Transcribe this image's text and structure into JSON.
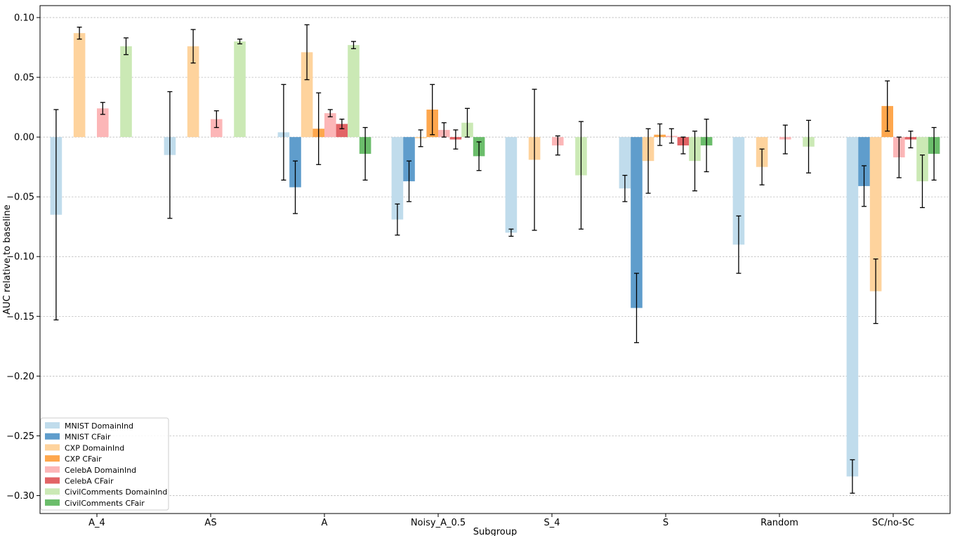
{
  "chart_data": {
    "type": "bar",
    "title": "",
    "xlabel": "Subgroup",
    "ylabel": "AUC relative to baseline",
    "ylim": [
      -0.315,
      0.11
    ],
    "yticks": [
      0.1,
      0.05,
      0.0,
      -0.05,
      -0.1,
      -0.15,
      -0.2,
      -0.25,
      -0.3
    ],
    "ytick_labels": [
      "0.10",
      "0.05",
      "0.00",
      "−0.05",
      "−0.10",
      "−0.15",
      "−0.20",
      "−0.25",
      "−0.30"
    ],
    "grid": "y",
    "legend_position": "lower-left",
    "categories": [
      "A_4",
      "AS",
      "A",
      "Noisy_A_0.5",
      "S_4",
      "S",
      "Random",
      "SC/no-SC"
    ],
    "series": [
      {
        "name": "MNIST DomainInd",
        "color": "#c0dcec",
        "values": [
          -0.065,
          -0.015,
          0.004,
          -0.069,
          -0.08,
          -0.043,
          -0.09,
          -0.284
        ],
        "errors": [
          0.088,
          0.053,
          0.04,
          0.013,
          0.003,
          0.011,
          0.024,
          0.014
        ]
      },
      {
        "name": "MNIST CFair",
        "color": "#5f9dcc",
        "values": [
          null,
          null,
          -0.042,
          -0.037,
          null,
          -0.143,
          null,
          -0.041
        ],
        "errors": [
          null,
          null,
          0.022,
          0.017,
          null,
          0.029,
          null,
          0.017
        ]
      },
      {
        "name": "CXP DomainInd",
        "color": "#fed39d",
        "values": [
          0.087,
          0.076,
          0.071,
          -0.001,
          -0.019,
          -0.02,
          -0.025,
          -0.129
        ],
        "errors": [
          0.005,
          0.014,
          0.023,
          0.007,
          0.059,
          0.027,
          0.015,
          0.027
        ]
      },
      {
        "name": "CXP CFair",
        "color": "#fea74d",
        "values": [
          null,
          null,
          0.007,
          0.023,
          null,
          0.002,
          null,
          0.026
        ],
        "errors": [
          null,
          null,
          0.03,
          0.021,
          null,
          0.009,
          null,
          0.021
        ]
      },
      {
        "name": "CelebA DomainInd",
        "color": "#fcb6b7",
        "values": [
          0.024,
          0.015,
          0.02,
          0.006,
          -0.007,
          0.001,
          -0.002,
          -0.017
        ],
        "errors": [
          0.005,
          0.007,
          0.003,
          0.006,
          0.008,
          0.006,
          0.012,
          0.017
        ]
      },
      {
        "name": "CelebA CFair",
        "color": "#e26466",
        "values": [
          null,
          null,
          0.011,
          -0.002,
          null,
          -0.007,
          null,
          -0.002
        ],
        "errors": [
          null,
          null,
          0.004,
          0.008,
          null,
          0.007,
          null,
          0.007
        ]
      },
      {
        "name": "CivilComments DomainInd",
        "color": "#cbe9b5",
        "values": [
          0.076,
          0.08,
          0.077,
          0.012,
          -0.032,
          -0.02,
          -0.008,
          -0.037
        ],
        "errors": [
          0.007,
          0.002,
          0.003,
          0.012,
          0.045,
          0.025,
          0.022,
          0.022
        ]
      },
      {
        "name": "CivilComments CFair",
        "color": "#6bbd6b",
        "values": [
          null,
          null,
          -0.014,
          -0.016,
          null,
          -0.007,
          null,
          -0.014
        ],
        "errors": [
          null,
          null,
          0.022,
          0.012,
          null,
          0.022,
          null,
          0.022
        ]
      }
    ]
  }
}
